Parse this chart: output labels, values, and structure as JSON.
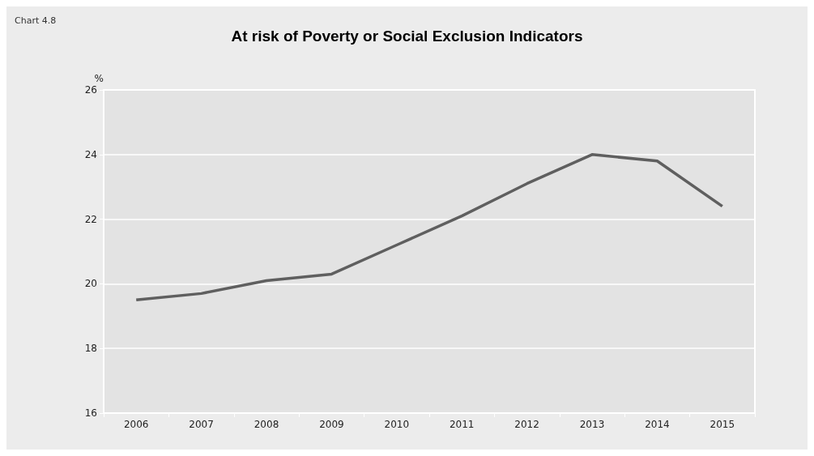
{
  "chart_data": {
    "type": "line",
    "title": "At risk of Poverty or Social Exclusion Indicators",
    "ylabel": "%",
    "annotations": [
      "Chart 4.8"
    ],
    "categories": [
      "2006",
      "2007",
      "2008",
      "2009",
      "2010",
      "2011",
      "2012",
      "2013",
      "2014",
      "2015"
    ],
    "series": [
      {
        "color": "#5f5f5f",
        "values": [
          19.5,
          19.7,
          20.1,
          20.3,
          21.2,
          22.1,
          23.1,
          24.0,
          23.8,
          22.4
        ]
      }
    ],
    "ylim": [
      16,
      26
    ],
    "yticks": [
      16,
      18,
      20,
      22,
      24,
      26
    ],
    "grid": "y",
    "marker": "none",
    "line_style": "solid"
  }
}
